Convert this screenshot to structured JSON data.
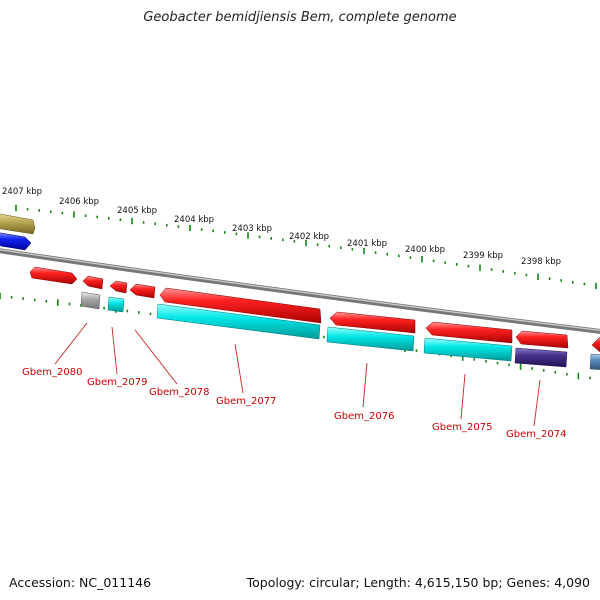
{
  "title": "Geobacter bemidjiensis Bem, complete genome",
  "footer": {
    "accession": "Accession: NC_011146",
    "topology": "Topology: circular; Length: 4,615,150 bp; Genes: 4,090"
  },
  "scale": {
    "unit": "kbp",
    "ticks": [
      "2407 kbp",
      "2406 kbp",
      "2405 kbp",
      "2404 kbp",
      "2403 kbp",
      "2402 kbp",
      "2401 kbp",
      "2400 kbp",
      "2399 kbp",
      "2398 kbp"
    ]
  },
  "gene_labels": [
    "Gbem_2080",
    "Gbem_2079",
    "Gbem_2078",
    "Gbem_2077",
    "Gbem_2076",
    "Gbem_2075",
    "Gbem_2074"
  ],
  "colors": {
    "cds": "#ee1111",
    "rna": "#00dddd",
    "backbone": "#888888",
    "tick": "#118811",
    "label": "#cc0000",
    "gene_blue": "#1122ee",
    "gene_olive": "#bbaa55",
    "gene_gray": "#aaaaaa",
    "gene_navy": "#443388",
    "gene_steel": "#5588bb"
  }
}
